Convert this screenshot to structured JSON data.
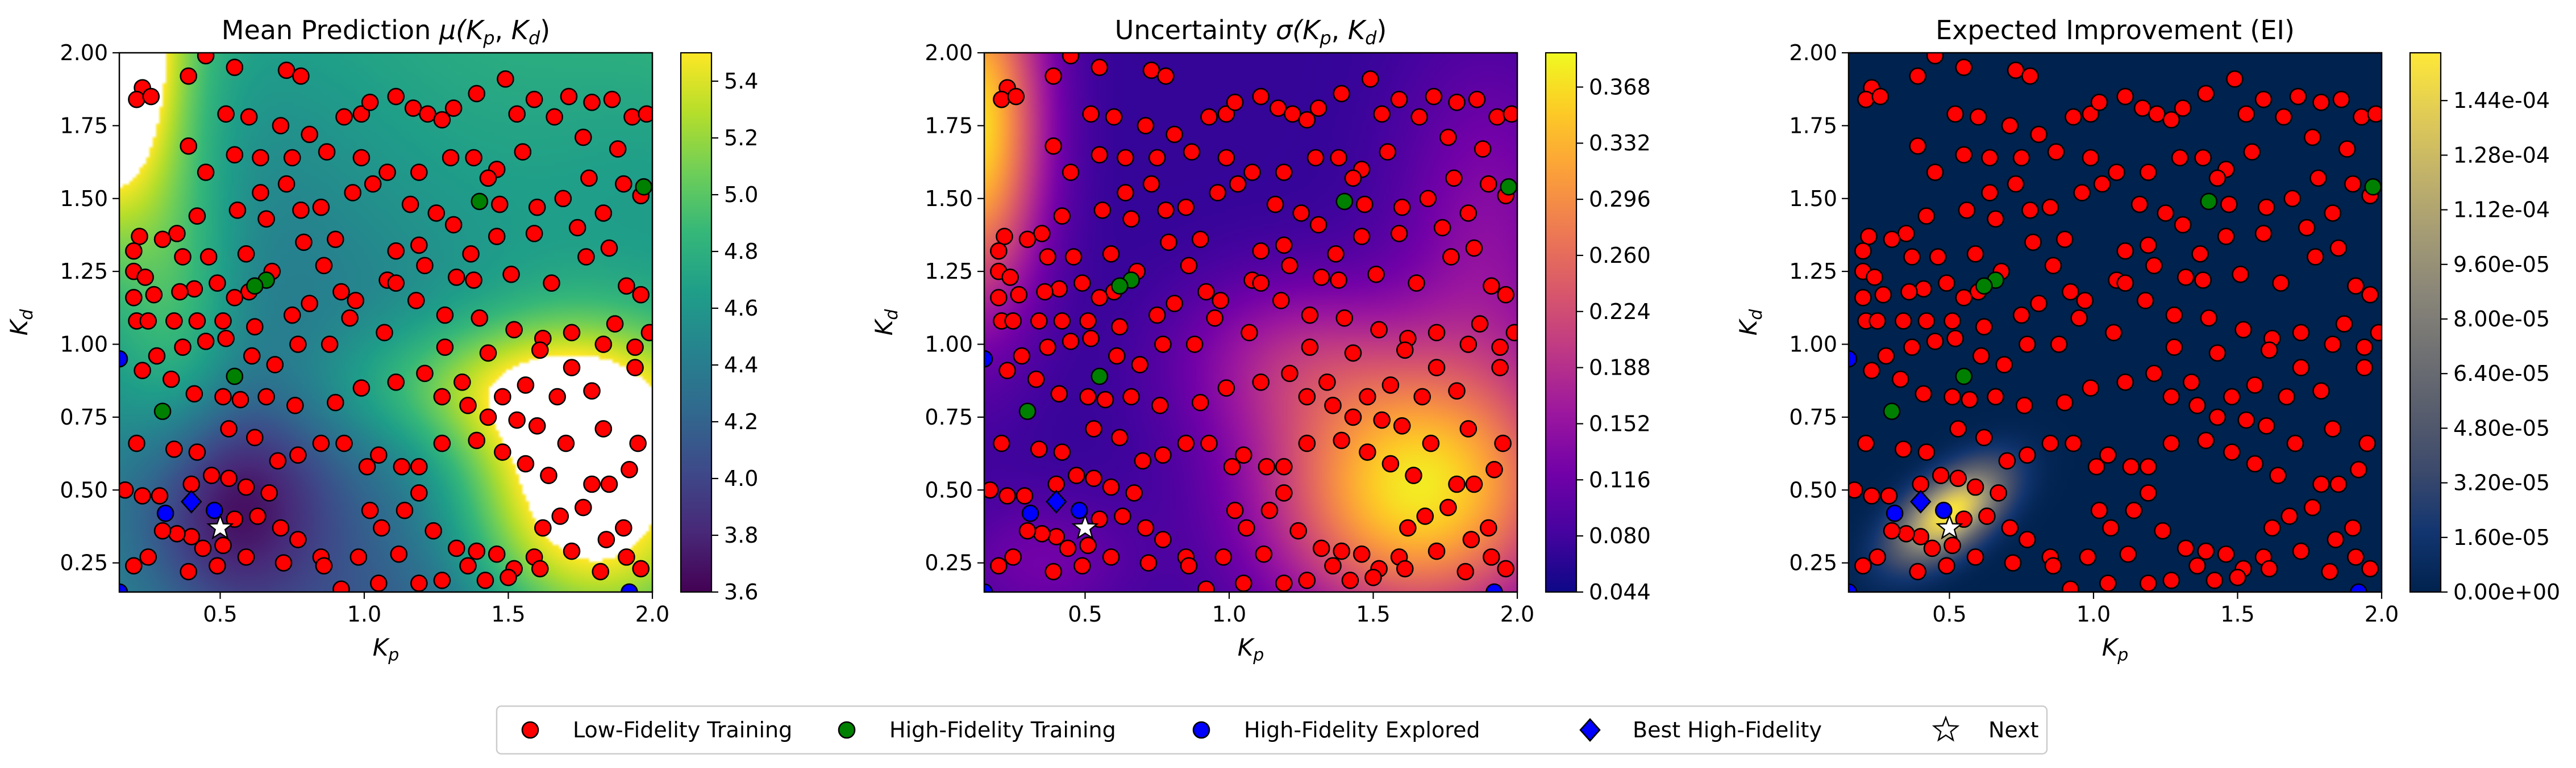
{
  "chart_data": [
    {
      "type": "heatmap",
      "title": "Mean Prediction μ(K_p, K_d)",
      "title_main": "Mean Prediction ",
      "title_sym": "μ(",
      "xlabel": "K_p",
      "ylabel": "K_d",
      "xlim": [
        0.15,
        2.0
      ],
      "ylim": [
        0.15,
        2.0
      ],
      "xticks": [
        "0.5",
        "1.0",
        "1.5",
        "2.0"
      ],
      "yticks": [
        "0.25",
        "0.50",
        "0.75",
        "1.00",
        "1.25",
        "1.50",
        "1.75",
        "2.00"
      ],
      "colormap": "viridis",
      "colorbar_range": [
        3.6,
        5.5
      ],
      "colorbar_ticks": [
        "3.6",
        "3.8",
        "4.0",
        "4.2",
        "4.4",
        "4.6",
        "4.8",
        "5.0",
        "5.2",
        "5.4"
      ],
      "colorbar_tick_values": [
        3.6,
        3.8,
        4.0,
        4.2,
        4.4,
        4.6,
        4.8,
        5.0,
        5.2,
        5.4
      ],
      "masked_regions": "values above colour range shown as white (upper-left corner, lower-right region)"
    },
    {
      "type": "heatmap",
      "title": "Uncertainty σ(K_p, K_d)",
      "title_main": "Uncertainty ",
      "title_sym": "σ(",
      "xlabel": "K_p",
      "ylabel": "K_d",
      "xlim": [
        0.15,
        2.0
      ],
      "ylim": [
        0.15,
        2.0
      ],
      "xticks": [
        "0.5",
        "1.0",
        "1.5",
        "2.0"
      ],
      "yticks": [
        "0.25",
        "0.50",
        "0.75",
        "1.00",
        "1.25",
        "1.50",
        "1.75",
        "2.00"
      ],
      "colormap": "plasma",
      "colorbar_range": [
        0.044,
        0.39
      ],
      "colorbar_ticks": [
        "0.044",
        "0.080",
        "0.116",
        "0.152",
        "0.188",
        "0.224",
        "0.260",
        "0.296",
        "0.332",
        "0.368"
      ],
      "colorbar_tick_values": [
        0.044,
        0.08,
        0.116,
        0.152,
        0.188,
        0.224,
        0.26,
        0.296,
        0.332,
        0.368
      ]
    },
    {
      "type": "heatmap",
      "title": "Expected Improvement (EI)",
      "xlabel": "K_p",
      "ylabel": "K_d",
      "xlim": [
        0.15,
        2.0
      ],
      "ylim": [
        0.15,
        2.0
      ],
      "xticks": [
        "0.5",
        "1.0",
        "1.5",
        "2.0"
      ],
      "yticks": [
        "0.25",
        "0.50",
        "0.75",
        "1.00",
        "1.25",
        "1.50",
        "1.75",
        "2.00"
      ],
      "colormap": "cividis",
      "colorbar_range": [
        0.0,
        0.000158
      ],
      "colorbar_ticks": [
        "0.00e+00",
        "1.60e-05",
        "3.20e-05",
        "4.80e-05",
        "6.40e-05",
        "8.00e-05",
        "9.60e-05",
        "1.12e-04",
        "1.28e-04",
        "1.44e-04"
      ],
      "colorbar_tick_values": [
        0.0,
        1.6e-05,
        3.2e-05,
        4.8e-05,
        6.4e-05,
        8e-05,
        9.6e-05,
        0.000112,
        0.000128,
        0.000144
      ],
      "peak_location": [
        0.5,
        0.37
      ]
    }
  ],
  "points": {
    "low_fidelity": [
      [
        0.23,
        1.88
      ],
      [
        0.21,
        1.84
      ],
      [
        0.26,
        1.85
      ],
      [
        0.39,
        1.92
      ],
      [
        0.45,
        1.99
      ],
      [
        0.55,
        1.95
      ],
      [
        0.73,
        1.94
      ],
      [
        0.78,
        1.92
      ],
      [
        0.52,
        1.79
      ],
      [
        0.6,
        1.78
      ],
      [
        0.71,
        1.75
      ],
      [
        0.81,
        1.72
      ],
      [
        0.93,
        1.78
      ],
      [
        0.99,
        1.79
      ],
      [
        1.02,
        1.83
      ],
      [
        1.11,
        1.85
      ],
      [
        1.17,
        1.81
      ],
      [
        1.22,
        1.79
      ],
      [
        1.27,
        1.77
      ],
      [
        1.31,
        1.81
      ],
      [
        1.39,
        1.86
      ],
      [
        1.49,
        1.91
      ],
      [
        1.53,
        1.79
      ],
      [
        1.59,
        1.84
      ],
      [
        1.66,
        1.78
      ],
      [
        1.71,
        1.85
      ],
      [
        1.79,
        1.83
      ],
      [
        1.86,
        1.84
      ],
      [
        1.93,
        1.78
      ],
      [
        1.98,
        1.79
      ],
      [
        1.88,
        1.67
      ],
      [
        1.76,
        1.71
      ],
      [
        1.55,
        1.66
      ],
      [
        1.46,
        1.6
      ],
      [
        1.38,
        1.64
      ],
      [
        1.43,
        1.57
      ],
      [
        1.3,
        1.64
      ],
      [
        1.19,
        1.59
      ],
      [
        1.08,
        1.59
      ],
      [
        0.99,
        1.64
      ],
      [
        0.87,
        1.66
      ],
      [
        0.75,
        1.64
      ],
      [
        0.64,
        1.64
      ],
      [
        0.55,
        1.65
      ],
      [
        0.39,
        1.68
      ],
      [
        0.45,
        1.59
      ],
      [
        0.73,
        1.55
      ],
      [
        0.64,
        1.52
      ],
      [
        0.56,
        1.46
      ],
      [
        0.42,
        1.44
      ],
      [
        0.35,
        1.38
      ],
      [
        0.3,
        1.36
      ],
      [
        0.22,
        1.37
      ],
      [
        0.2,
        1.32
      ],
      [
        0.2,
        1.25
      ],
      [
        0.24,
        1.23
      ],
      [
        0.37,
        1.3
      ],
      [
        0.46,
        1.3
      ],
      [
        0.59,
        1.31
      ],
      [
        0.66,
        1.43
      ],
      [
        0.78,
        1.46
      ],
      [
        0.85,
        1.47
      ],
      [
        0.96,
        1.52
      ],
      [
        1.03,
        1.55
      ],
      [
        1.16,
        1.48
      ],
      [
        1.25,
        1.45
      ],
      [
        1.31,
        1.41
      ],
      [
        1.47,
        1.48
      ],
      [
        1.6,
        1.47
      ],
      [
        1.69,
        1.5
      ],
      [
        1.78,
        1.57
      ],
      [
        1.9,
        1.55
      ],
      [
        1.96,
        1.51
      ],
      [
        1.83,
        1.45
      ],
      [
        1.74,
        1.4
      ],
      [
        1.59,
        1.38
      ],
      [
        1.46,
        1.37
      ],
      [
        1.37,
        1.31
      ],
      [
        1.19,
        1.34
      ],
      [
        1.11,
        1.32
      ],
      [
        0.9,
        1.36
      ],
      [
        0.79,
        1.35
      ],
      [
        0.86,
        1.27
      ],
      [
        0.68,
        1.25
      ],
      [
        0.6,
        1.18
      ],
      [
        0.55,
        1.16
      ],
      [
        0.49,
        1.21
      ],
      [
        0.41,
        1.19
      ],
      [
        0.36,
        1.18
      ],
      [
        0.27,
        1.17
      ],
      [
        0.2,
        1.16
      ],
      [
        0.21,
        1.08
      ],
      [
        0.25,
        1.08
      ],
      [
        0.34,
        1.08
      ],
      [
        0.42,
        1.08
      ],
      [
        0.51,
        1.08
      ],
      [
        0.62,
        1.06
      ],
      [
        0.75,
        1.1
      ],
      [
        0.81,
        1.14
      ],
      [
        0.92,
        1.18
      ],
      [
        0.97,
        1.15
      ],
      [
        1.08,
        1.22
      ],
      [
        1.11,
        1.21
      ],
      [
        1.21,
        1.27
      ],
      [
        1.32,
        1.23
      ],
      [
        1.38,
        1.22
      ],
      [
        1.51,
        1.24
      ],
      [
        1.65,
        1.21
      ],
      [
        1.77,
        1.3
      ],
      [
        1.85,
        1.33
      ],
      [
        1.91,
        1.2
      ],
      [
        1.96,
        1.17
      ],
      [
        1.87,
        1.07
      ],
      [
        1.72,
        1.04
      ],
      [
        1.62,
        1.02
      ],
      [
        1.52,
        1.05
      ],
      [
        1.4,
        1.09
      ],
      [
        1.28,
        1.1
      ],
      [
        1.18,
        1.15
      ],
      [
        1.07,
        1.04
      ],
      [
        0.95,
        1.09
      ],
      [
        0.88,
        1.0
      ],
      [
        0.77,
        1.0
      ],
      [
        0.69,
        0.93
      ],
      [
        0.61,
        0.96
      ],
      [
        0.52,
        1.02
      ],
      [
        0.45,
        1.01
      ],
      [
        0.37,
        0.99
      ],
      [
        0.28,
        0.96
      ],
      [
        0.23,
        0.91
      ],
      [
        0.33,
        0.88
      ],
      [
        0.41,
        0.83
      ],
      [
        0.51,
        0.82
      ],
      [
        0.57,
        0.81
      ],
      [
        0.66,
        0.82
      ],
      [
        0.76,
        0.79
      ],
      [
        0.9,
        0.8
      ],
      [
        0.99,
        0.85
      ],
      [
        1.11,
        0.87
      ],
      [
        1.21,
        0.9
      ],
      [
        1.28,
        0.99
      ],
      [
        1.43,
        0.97
      ],
      [
        1.61,
        0.98
      ],
      [
        1.72,
        0.92
      ],
      [
        1.83,
        1.0
      ],
      [
        1.94,
        0.92
      ],
      [
        1.99,
        1.04
      ],
      [
        1.94,
        0.99
      ],
      [
        1.79,
        0.84
      ],
      [
        1.67,
        0.82
      ],
      [
        1.56,
        0.86
      ],
      [
        1.48,
        0.82
      ],
      [
        1.36,
        0.79
      ],
      [
        1.27,
        0.82
      ],
      [
        1.34,
        0.87
      ],
      [
        1.43,
        0.75
      ],
      [
        1.53,
        0.74
      ],
      [
        1.6,
        0.72
      ],
      [
        1.7,
        0.66
      ],
      [
        1.83,
        0.71
      ],
      [
        1.95,
        0.66
      ],
      [
        1.92,
        0.57
      ],
      [
        1.85,
        0.52
      ],
      [
        1.79,
        0.52
      ],
      [
        1.64,
        0.55
      ],
      [
        1.56,
        0.59
      ],
      [
        1.48,
        0.63
      ],
      [
        1.39,
        0.67
      ],
      [
        1.27,
        0.66
      ],
      [
        1.19,
        0.58
      ],
      [
        1.13,
        0.58
      ],
      [
        1.05,
        0.62
      ],
      [
        1.01,
        0.58
      ],
      [
        0.93,
        0.66
      ],
      [
        0.85,
        0.66
      ],
      [
        0.77,
        0.62
      ],
      [
        0.7,
        0.6
      ],
      [
        0.62,
        0.68
      ],
      [
        0.53,
        0.71
      ],
      [
        0.42,
        0.63
      ],
      [
        0.34,
        0.64
      ],
      [
        0.21,
        0.66
      ],
      [
        0.17,
        0.5
      ],
      [
        0.23,
        0.48
      ],
      [
        0.29,
        0.48
      ],
      [
        0.4,
        0.52
      ],
      [
        0.47,
        0.55
      ],
      [
        0.53,
        0.54
      ],
      [
        0.59,
        0.51
      ],
      [
        0.67,
        0.49
      ],
      [
        0.63,
        0.41
      ],
      [
        0.71,
        0.37
      ],
      [
        0.77,
        0.33
      ],
      [
        0.85,
        0.27
      ],
      [
        0.98,
        0.27
      ],
      [
        1.02,
        0.43
      ],
      [
        1.06,
        0.37
      ],
      [
        1.14,
        0.43
      ],
      [
        1.19,
        0.49
      ],
      [
        1.24,
        0.36
      ],
      [
        1.32,
        0.3
      ],
      [
        1.39,
        0.29
      ],
      [
        1.46,
        0.28
      ],
      [
        1.52,
        0.23
      ],
      [
        1.59,
        0.27
      ],
      [
        1.62,
        0.37
      ],
      [
        1.68,
        0.41
      ],
      [
        1.76,
        0.44
      ],
      [
        1.84,
        0.33
      ],
      [
        1.9,
        0.37
      ],
      [
        1.96,
        0.23
      ],
      [
        1.91,
        0.27
      ],
      [
        1.82,
        0.22
      ],
      [
        1.72,
        0.29
      ],
      [
        1.61,
        0.23
      ],
      [
        1.5,
        0.2
      ],
      [
        1.42,
        0.19
      ],
      [
        1.27,
        0.19
      ],
      [
        1.19,
        0.18
      ],
      [
        1.05,
        0.18
      ],
      [
        0.92,
        0.16
      ],
      [
        0.86,
        0.24
      ],
      [
        0.72,
        0.25
      ],
      [
        0.59,
        0.27
      ],
      [
        0.51,
        0.31
      ],
      [
        0.44,
        0.3
      ],
      [
        0.4,
        0.34
      ],
      [
        0.35,
        0.35
      ],
      [
        0.3,
        0.36
      ],
      [
        0.25,
        0.27
      ],
      [
        0.2,
        0.24
      ],
      [
        0.39,
        0.22
      ],
      [
        0.49,
        0.24
      ],
      [
        0.55,
        0.4
      ],
      [
        1.36,
        0.24
      ],
      [
        1.12,
        0.28
      ]
    ],
    "high_fidelity_training": [
      [
        1.4,
        1.49
      ],
      [
        0.66,
        1.22
      ],
      [
        0.62,
        1.2
      ],
      [
        0.55,
        0.89
      ],
      [
        0.3,
        0.77
      ],
      [
        1.97,
        1.54
      ]
    ],
    "high_fidelity_explored": [
      [
        0.48,
        0.43
      ],
      [
        0.31,
        0.42
      ],
      [
        0.15,
        0.95
      ],
      [
        0.15,
        0.15
      ],
      [
        1.92,
        0.15
      ]
    ],
    "best_high_fidelity": [
      0.4,
      0.46
    ],
    "next": [
      0.5,
      0.37
    ]
  },
  "legend": [
    {
      "label": "Low-Fidelity Training",
      "marker": "circle",
      "color": "#ff0000"
    },
    {
      "label": "High-Fidelity Training",
      "marker": "circle",
      "color": "#008000"
    },
    {
      "label": "High-Fidelity Explored",
      "marker": "circle",
      "color": "#0000ff"
    },
    {
      "label": "Best High-Fidelity",
      "marker": "diamond",
      "color": "#0000ff"
    },
    {
      "label": "Next",
      "marker": "star",
      "color": "#ffffff"
    }
  ]
}
